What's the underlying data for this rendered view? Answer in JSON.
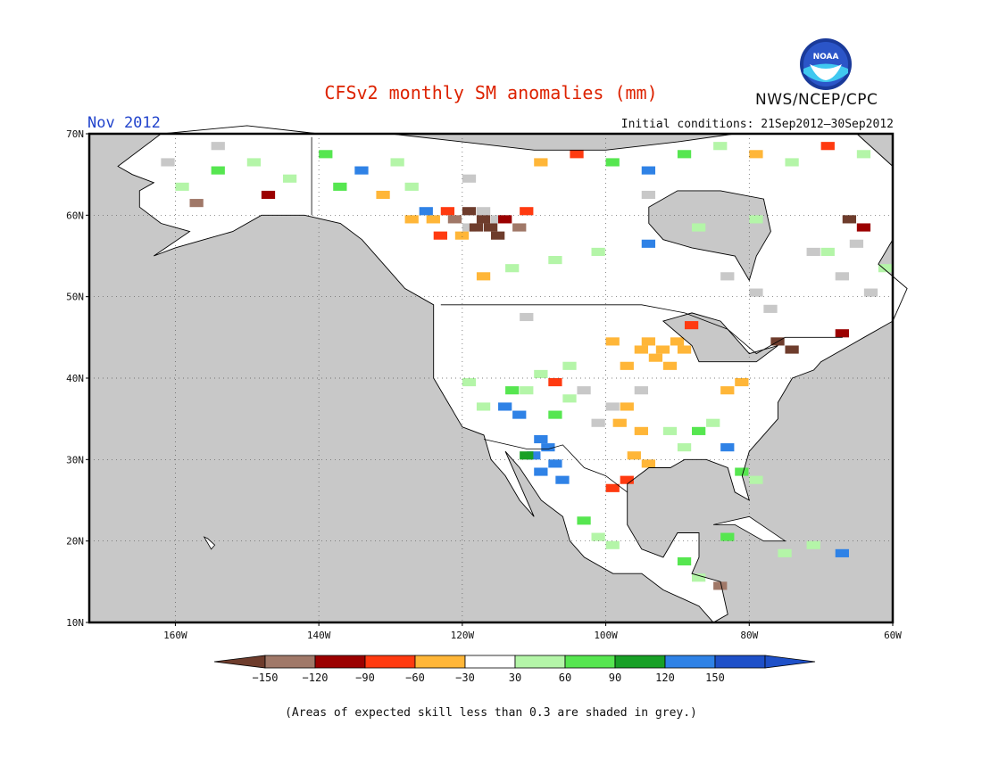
{
  "title": "CFSv2 monthly SM anomalies (mm)",
  "subtitle": "Nov 2012",
  "initial_conditions": "Initial conditions: 21Sep2012—30Sep2012",
  "agency": "NWS/NCEP/CPC",
  "logo_text": "NOAA",
  "footnote": "(Areas of expected skill less than 0.3 are shaded in grey.)",
  "map": {
    "lon_range": [
      -172,
      -60
    ],
    "lat_range": [
      10,
      70
    ],
    "lon_ticks": [
      {
        "label": "160W",
        "value": -160
      },
      {
        "label": "140W",
        "value": -140
      },
      {
        "label": "120W",
        "value": -120
      },
      {
        "label": "100W",
        "value": -100
      },
      {
        "label": "80W",
        "value": -80
      },
      {
        "label": "60W",
        "value": -60
      }
    ],
    "lat_ticks": [
      {
        "label": "70N",
        "value": 70
      },
      {
        "label": "60N",
        "value": 60
      },
      {
        "label": "50N",
        "value": 50
      },
      {
        "label": "40N",
        "value": 40
      },
      {
        "label": "30N",
        "value": 30
      },
      {
        "label": "20N",
        "value": 20
      },
      {
        "label": "10N",
        "value": 10
      }
    ],
    "ocean_color": "#c8c8c8",
    "land_color": "#ffffff",
    "grid_lines": true
  },
  "colorbar": {
    "labels": [
      "−150",
      "−120",
      "−90",
      "−60",
      "−30",
      "30",
      "60",
      "90",
      "120",
      "150"
    ],
    "colors": [
      "#6e3c2c",
      "#a07868",
      "#9b0000",
      "#ff3a10",
      "#ffb638",
      "#ffffff",
      "#b4f5a8",
      "#56e650",
      "#18a026",
      "#2f82e6",
      "#1e50c8"
    ],
    "arrow_left_color": "#6e3c2c",
    "arrow_right_color": "#1e50c8"
  },
  "anomaly_cells": [
    {
      "lon": -118,
      "lat": 59,
      "cat": "<-150"
    },
    {
      "lon": -117,
      "lat": 58,
      "cat": "<-150"
    },
    {
      "lon": -119,
      "lat": 58,
      "cat": "<-150"
    },
    {
      "lon": -116,
      "lat": 57,
      "cat": "<-150"
    },
    {
      "lon": -120,
      "lat": 60,
      "cat": "<-150"
    },
    {
      "lon": -115,
      "lat": 59,
      "cat": "-120"
    },
    {
      "lon": -122,
      "lat": 59,
      "cat": "-150"
    },
    {
      "lon": -123,
      "lat": 60,
      "cat": "-90"
    },
    {
      "lon": -125,
      "lat": 59,
      "cat": "-60"
    },
    {
      "lon": -126,
      "lat": 60,
      "cat": "150"
    },
    {
      "lon": -128,
      "lat": 59,
      "cat": "-60"
    },
    {
      "lon": -121,
      "lat": 57,
      "cat": "-60"
    },
    {
      "lon": -124,
      "lat": 57,
      "cat": "-90"
    },
    {
      "lon": -112,
      "lat": 60,
      "cat": "-90"
    },
    {
      "lon": -113,
      "lat": 58,
      "cat": "-150"
    },
    {
      "lon": -91,
      "lat": 44,
      "cat": "-60"
    },
    {
      "lon": -93,
      "lat": 43,
      "cat": "-60"
    },
    {
      "lon": -95,
      "lat": 44,
      "cat": "-60"
    },
    {
      "lon": -92,
      "lat": 41,
      "cat": "-60"
    },
    {
      "lon": -94,
      "lat": 42,
      "cat": "-60"
    },
    {
      "lon": -90,
      "lat": 43,
      "cat": "-30"
    },
    {
      "lon": -89,
      "lat": 46,
      "cat": "-90"
    },
    {
      "lon": -96,
      "lat": 43,
      "cat": "-60"
    },
    {
      "lon": -98,
      "lat": 41,
      "cat": "-60"
    },
    {
      "lon": -100,
      "lat": 44,
      "cat": "-30"
    },
    {
      "lon": -84,
      "lat": 38,
      "cat": "-60"
    },
    {
      "lon": -82,
      "lat": 39,
      "cat": "-30"
    },
    {
      "lon": -77,
      "lat": 44,
      "cat": "<-150"
    },
    {
      "lon": -75,
      "lat": 43,
      "cat": "<-150"
    },
    {
      "lon": -68,
      "lat": 45,
      "cat": "-120"
    },
    {
      "lon": -98,
      "lat": 36,
      "cat": "-60"
    },
    {
      "lon": -99,
      "lat": 34,
      "cat": "-60"
    },
    {
      "lon": -96,
      "lat": 33,
      "cat": "-30"
    },
    {
      "lon": -97,
      "lat": 30,
      "cat": "-60"
    },
    {
      "lon": -95,
      "lat": 29,
      "cat": "-30"
    },
    {
      "lon": -98,
      "lat": 27,
      "cat": "-90"
    },
    {
      "lon": -100,
      "lat": 26,
      "cat": "-90"
    },
    {
      "lon": -110,
      "lat": 32,
      "cat": "150"
    },
    {
      "lon": -109,
      "lat": 31,
      "cat": "150"
    },
    {
      "lon": -111,
      "lat": 30,
      "cat": "150"
    },
    {
      "lon": -108,
      "lat": 29,
      "cat": "150"
    },
    {
      "lon": -110,
      "lat": 28,
      "cat": "150"
    },
    {
      "lon": -112,
      "lat": 30,
      "cat": "120"
    },
    {
      "lon": -107,
      "lat": 27,
      "cat": "150"
    },
    {
      "lon": -113,
      "lat": 35,
      "cat": "150"
    },
    {
      "lon": -115,
      "lat": 36,
      "cat": "150"
    },
    {
      "lon": -114,
      "lat": 38,
      "cat": "90"
    },
    {
      "lon": -112,
      "lat": 38,
      "cat": "60"
    },
    {
      "lon": -108,
      "lat": 35,
      "cat": "90"
    },
    {
      "lon": -106,
      "lat": 37,
      "cat": "60"
    },
    {
      "lon": -110,
      "lat": 40,
      "cat": "60"
    },
    {
      "lon": -118,
      "lat": 36,
      "cat": "60"
    },
    {
      "lon": -120,
      "lat": 39,
      "cat": "60"
    },
    {
      "lon": -108,
      "lat": 39,
      "cat": "-90"
    },
    {
      "lon": -106,
      "lat": 41,
      "cat": "60"
    },
    {
      "lon": -88,
      "lat": 33,
      "cat": "90"
    },
    {
      "lon": -86,
      "lat": 34,
      "cat": "60"
    },
    {
      "lon": -84,
      "lat": 31,
      "cat": "150"
    },
    {
      "lon": -82,
      "lat": 28,
      "cat": "90"
    },
    {
      "lon": -90,
      "lat": 31,
      "cat": "60"
    },
    {
      "lon": -92,
      "lat": 33,
      "cat": "60"
    },
    {
      "lon": -80,
      "lat": 27,
      "cat": "60"
    },
    {
      "lon": -104,
      "lat": 22,
      "cat": "90"
    },
    {
      "lon": -102,
      "lat": 20,
      "cat": "60"
    },
    {
      "lon": -100,
      "lat": 19,
      "cat": "60"
    },
    {
      "lon": -90,
      "lat": 17,
      "cat": "90"
    },
    {
      "lon": -88,
      "lat": 15,
      "cat": "60"
    },
    {
      "lon": -85,
      "lat": 14,
      "cat": "-150"
    },
    {
      "lon": -84,
      "lat": 20,
      "cat": "90"
    },
    {
      "lon": -76,
      "lat": 18,
      "cat": "60"
    },
    {
      "lon": -72,
      "lat": 19,
      "cat": "60"
    },
    {
      "lon": -68,
      "lat": 18,
      "cat": "150"
    },
    {
      "lon": -150,
      "lat": 66,
      "cat": "60"
    },
    {
      "lon": -155,
      "lat": 65,
      "cat": "90"
    },
    {
      "lon": -145,
      "lat": 64,
      "cat": "60"
    },
    {
      "lon": -140,
      "lat": 67,
      "cat": "90"
    },
    {
      "lon": -135,
      "lat": 65,
      "cat": "150"
    },
    {
      "lon": -130,
      "lat": 66,
      "cat": "60"
    },
    {
      "lon": -160,
      "lat": 63,
      "cat": "60"
    },
    {
      "lon": -158,
      "lat": 61,
      "cat": "-150"
    },
    {
      "lon": -148,
      "lat": 62,
      "cat": "-120"
    },
    {
      "lon": -138,
      "lat": 63,
      "cat": "90"
    },
    {
      "lon": -132,
      "lat": 62,
      "cat": "-60"
    },
    {
      "lon": -128,
      "lat": 63,
      "cat": "60"
    },
    {
      "lon": -110,
      "lat": 66,
      "cat": "-60"
    },
    {
      "lon": -105,
      "lat": 67,
      "cat": "-90"
    },
    {
      "lon": -100,
      "lat": 66,
      "cat": "90"
    },
    {
      "lon": -95,
      "lat": 65,
      "cat": "150"
    },
    {
      "lon": -90,
      "lat": 67,
      "cat": "90"
    },
    {
      "lon": -85,
      "lat": 68,
      "cat": "60"
    },
    {
      "lon": -80,
      "lat": 67,
      "cat": "-60"
    },
    {
      "lon": -75,
      "lat": 66,
      "cat": "60"
    },
    {
      "lon": -70,
      "lat": 68,
      "cat": "-90"
    },
    {
      "lon": -65,
      "lat": 67,
      "cat": "60"
    },
    {
      "lon": -118,
      "lat": 52,
      "cat": "-60"
    },
    {
      "lon": -114,
      "lat": 53,
      "cat": "60"
    },
    {
      "lon": -108,
      "lat": 54,
      "cat": "60"
    },
    {
      "lon": -102,
      "lat": 55,
      "cat": "60"
    },
    {
      "lon": -95,
      "lat": 56,
      "cat": "150"
    },
    {
      "lon": -88,
      "lat": 58,
      "cat": "60"
    },
    {
      "lon": -80,
      "lat": 59,
      "cat": "60"
    },
    {
      "lon": -67,
      "lat": 59,
      "cat": "<-150"
    },
    {
      "lon": -65,
      "lat": 58,
      "cat": "-120"
    },
    {
      "lon": -70,
      "lat": 55,
      "cat": "60"
    },
    {
      "lon": -62,
      "lat": 53,
      "cat": "60"
    }
  ],
  "low_skill_regions": [
    {
      "lon": -118,
      "lat": 60
    },
    {
      "lon": -116,
      "lat": 59
    },
    {
      "lon": -120,
      "lat": 58
    },
    {
      "lon": -80,
      "lat": 50
    },
    {
      "lon": -78,
      "lat": 48
    },
    {
      "lon": -84,
      "lat": 52
    },
    {
      "lon": -72,
      "lat": 55
    },
    {
      "lon": -68,
      "lat": 52
    },
    {
      "lon": -66,
      "lat": 56
    },
    {
      "lon": -64,
      "lat": 50
    },
    {
      "lon": -100,
      "lat": 36
    },
    {
      "lon": -102,
      "lat": 34
    },
    {
      "lon": -104,
      "lat": 38
    },
    {
      "lon": -96,
      "lat": 38
    },
    {
      "lon": -112,
      "lat": 47
    },
    {
      "lon": -155,
      "lat": 68
    },
    {
      "lon": -162,
      "lat": 66
    },
    {
      "lon": -120,
      "lat": 64
    },
    {
      "lon": -95,
      "lat": 62
    },
    {
      "lon": -87,
      "lat": 44
    }
  ]
}
